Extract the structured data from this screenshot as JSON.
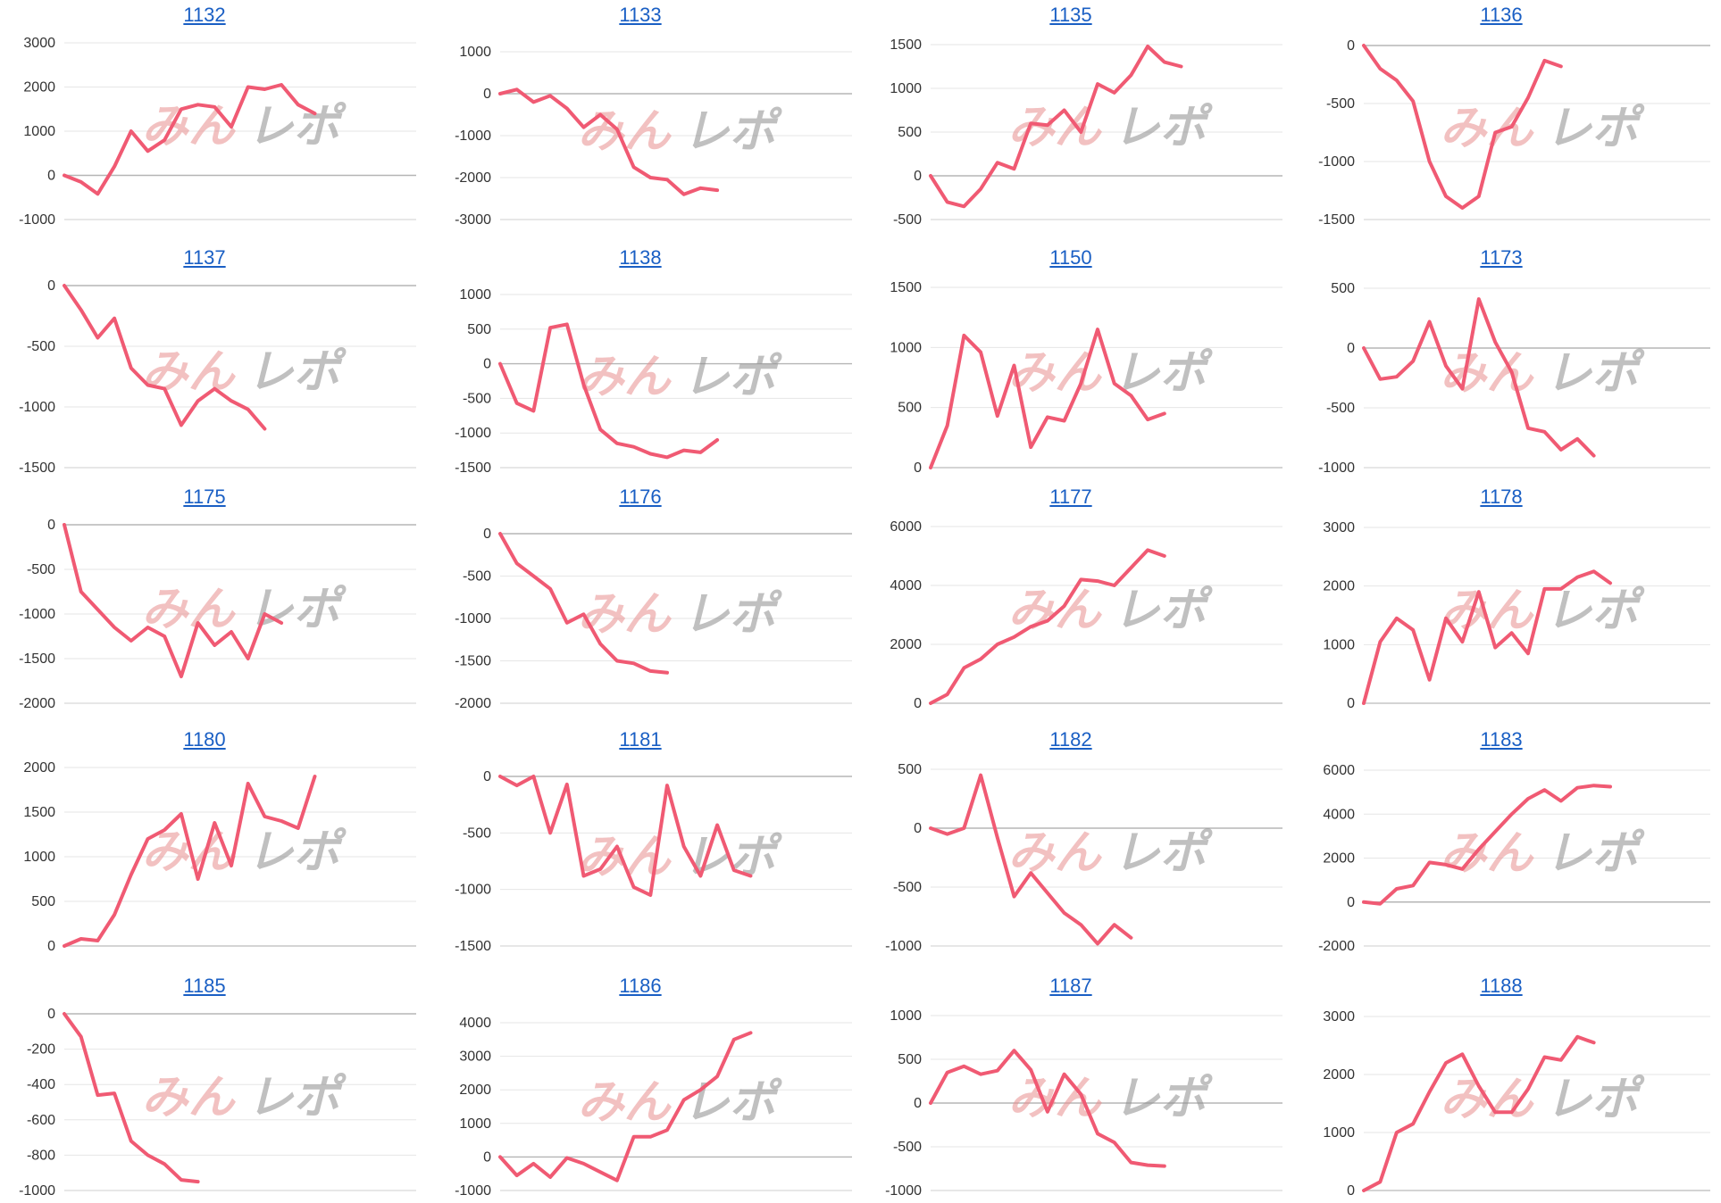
{
  "page": {
    "watermark": "みんレポ",
    "colors": {
      "line": "#f05a73",
      "grid": "#e6e6e6",
      "zero": "#b5b5b5",
      "title": "#1a5fc4",
      "wm_red": "#e88f8f",
      "wm_gray": "#8e8e8e"
    }
  },
  "chart_data": [
    {
      "type": "line",
      "title": "1132",
      "ylim": [
        -1000,
        3000
      ],
      "yticks": [
        3000,
        2000,
        1000,
        0,
        -1000
      ],
      "values": [
        0,
        -150,
        -420,
        200,
        1000,
        550,
        800,
        1500,
        1600,
        1550,
        1100,
        2000,
        1950,
        2050,
        1600,
        1400
      ]
    },
    {
      "type": "line",
      "title": "1133",
      "ylim": [
        -3000,
        1000
      ],
      "yticks": [
        1000,
        0,
        -1000,
        -2000,
        -3000
      ],
      "values": [
        0,
        100,
        -200,
        -50,
        -350,
        -800,
        -500,
        -850,
        -1750,
        -2000,
        -2050,
        -2400,
        -2250,
        -2300
      ]
    },
    {
      "type": "line",
      "title": "1135",
      "ylim": [
        -500,
        1500
      ],
      "yticks": [
        1500,
        1000,
        500,
        0,
        -500
      ],
      "values": [
        0,
        -300,
        -350,
        -150,
        150,
        80,
        600,
        580,
        750,
        500,
        1050,
        950,
        1150,
        1480,
        1300,
        1250
      ]
    },
    {
      "type": "line",
      "title": "1136",
      "ylim": [
        -1500,
        0
      ],
      "yticks": [
        0,
        -500,
        -1000,
        -1500
      ],
      "values": [
        0,
        -200,
        -300,
        -480,
        -1000,
        -1300,
        -1400,
        -1300,
        -750,
        -700,
        -450,
        -130,
        -180
      ]
    },
    {
      "type": "line",
      "title": "1137",
      "ylim": [
        -1500,
        0
      ],
      "yticks": [
        0,
        -500,
        -1000,
        -1500
      ],
      "values": [
        0,
        -200,
        -430,
        -270,
        -680,
        -820,
        -850,
        -1150,
        -950,
        -850,
        -950,
        -1020,
        -1180
      ]
    },
    {
      "type": "line",
      "title": "1138",
      "ylim": [
        -1500,
        1000
      ],
      "yticks": [
        1000,
        500,
        0,
        -500,
        -1000,
        -1500
      ],
      "values": [
        0,
        -570,
        -680,
        520,
        570,
        -300,
        -950,
        -1150,
        -1200,
        -1300,
        -1350,
        -1250,
        -1280,
        -1100
      ]
    },
    {
      "type": "line",
      "title": "1150",
      "ylim": [
        0,
        1500
      ],
      "yticks": [
        1500,
        1000,
        500,
        0
      ],
      "values": [
        0,
        350,
        1100,
        960,
        430,
        850,
        170,
        420,
        390,
        700,
        1150,
        700,
        600,
        400,
        450
      ]
    },
    {
      "type": "line",
      "title": "1173",
      "ylim": [
        -1000,
        500
      ],
      "yticks": [
        500,
        0,
        -500,
        -1000
      ],
      "values": [
        0,
        -260,
        -240,
        -110,
        220,
        -150,
        -340,
        410,
        50,
        -200,
        -670,
        -700,
        -850,
        -760,
        -900
      ]
    },
    {
      "type": "line",
      "title": "1175",
      "ylim": [
        -2000,
        0
      ],
      "yticks": [
        0,
        -500,
        -1000,
        -1500,
        -2000
      ],
      "values": [
        0,
        -750,
        -950,
        -1150,
        -1300,
        -1150,
        -1250,
        -1700,
        -1100,
        -1350,
        -1200,
        -1500,
        -1000,
        -1100
      ]
    },
    {
      "type": "line",
      "title": "1176",
      "ylim": [
        -2000,
        0
      ],
      "yticks": [
        0,
        -500,
        -1000,
        -1500,
        -2000
      ],
      "values": [
        0,
        -350,
        -500,
        -650,
        -1050,
        -950,
        -1300,
        -1500,
        -1530,
        -1620,
        -1640
      ]
    },
    {
      "type": "line",
      "title": "1177",
      "ylim": [
        0,
        6000
      ],
      "yticks": [
        6000,
        4000,
        2000,
        0
      ],
      "values": [
        0,
        300,
        1200,
        1500,
        2000,
        2250,
        2600,
        2800,
        3300,
        4200,
        4150,
        4000,
        4600,
        5200,
        5000
      ]
    },
    {
      "type": "line",
      "title": "1178",
      "ylim": [
        0,
        3000
      ],
      "yticks": [
        3000,
        2000,
        1000,
        0
      ],
      "values": [
        0,
        1050,
        1450,
        1250,
        400,
        1450,
        1050,
        1900,
        950,
        1200,
        850,
        1950,
        1950,
        2150,
        2250,
        2050
      ]
    },
    {
      "type": "line",
      "title": "1180",
      "ylim": [
        0,
        2000
      ],
      "yticks": [
        2000,
        1500,
        1000,
        500,
        0
      ],
      "values": [
        0,
        80,
        60,
        350,
        800,
        1200,
        1300,
        1480,
        750,
        1380,
        900,
        1820,
        1450,
        1400,
        1320,
        1900
      ]
    },
    {
      "type": "line",
      "title": "1181",
      "ylim": [
        -1500,
        0
      ],
      "yticks": [
        0,
        -500,
        -1000,
        -1500
      ],
      "values": [
        0,
        -80,
        0,
        -500,
        -70,
        -880,
        -820,
        -620,
        -980,
        -1050,
        -80,
        -620,
        -880,
        -430,
        -830,
        -880
      ]
    },
    {
      "type": "line",
      "title": "1182",
      "ylim": [
        -1000,
        500
      ],
      "yticks": [
        500,
        0,
        -500,
        -1000
      ],
      "values": [
        0,
        -50,
        0,
        450,
        -80,
        -580,
        -380,
        -550,
        -720,
        -820,
        -980,
        -820,
        -930
      ]
    },
    {
      "type": "line",
      "title": "1183",
      "ylim": [
        -2000,
        6000
      ],
      "yticks": [
        6000,
        4000,
        2000,
        0,
        -2000
      ],
      "values": [
        0,
        -80,
        600,
        750,
        1800,
        1700,
        1500,
        2400,
        3200,
        4000,
        4700,
        5100,
        4600,
        5200,
        5300,
        5250
      ]
    },
    {
      "type": "line",
      "title": "1185",
      "ylim": [
        -1000,
        0
      ],
      "yticks": [
        0,
        -200,
        -400,
        -600,
        -800,
        -1000
      ],
      "values": [
        0,
        -130,
        -460,
        -450,
        -720,
        -800,
        -850,
        -940,
        -950
      ]
    },
    {
      "type": "line",
      "title": "1186",
      "ylim": [
        -1000,
        4000
      ],
      "yticks": [
        4000,
        3000,
        2000,
        1000,
        0,
        -1000
      ],
      "values": [
        0,
        -550,
        -200,
        -600,
        -30,
        -200,
        -450,
        -700,
        600,
        600,
        800,
        1700,
        2000,
        2400,
        3500,
        3700
      ]
    },
    {
      "type": "line",
      "title": "1187",
      "ylim": [
        -1000,
        1000
      ],
      "yticks": [
        1000,
        500,
        0,
        -500,
        -1000
      ],
      "values": [
        0,
        350,
        420,
        330,
        370,
        600,
        380,
        -100,
        330,
        100,
        -350,
        -450,
        -680,
        -710,
        -720
      ]
    },
    {
      "type": "line",
      "title": "1188",
      "ylim": [
        0,
        3000
      ],
      "yticks": [
        3000,
        2000,
        1000,
        0
      ],
      "values": [
        0,
        150,
        1000,
        1150,
        1700,
        2200,
        2350,
        1800,
        1350,
        1350,
        1750,
        2300,
        2250,
        2650,
        2550
      ]
    }
  ]
}
